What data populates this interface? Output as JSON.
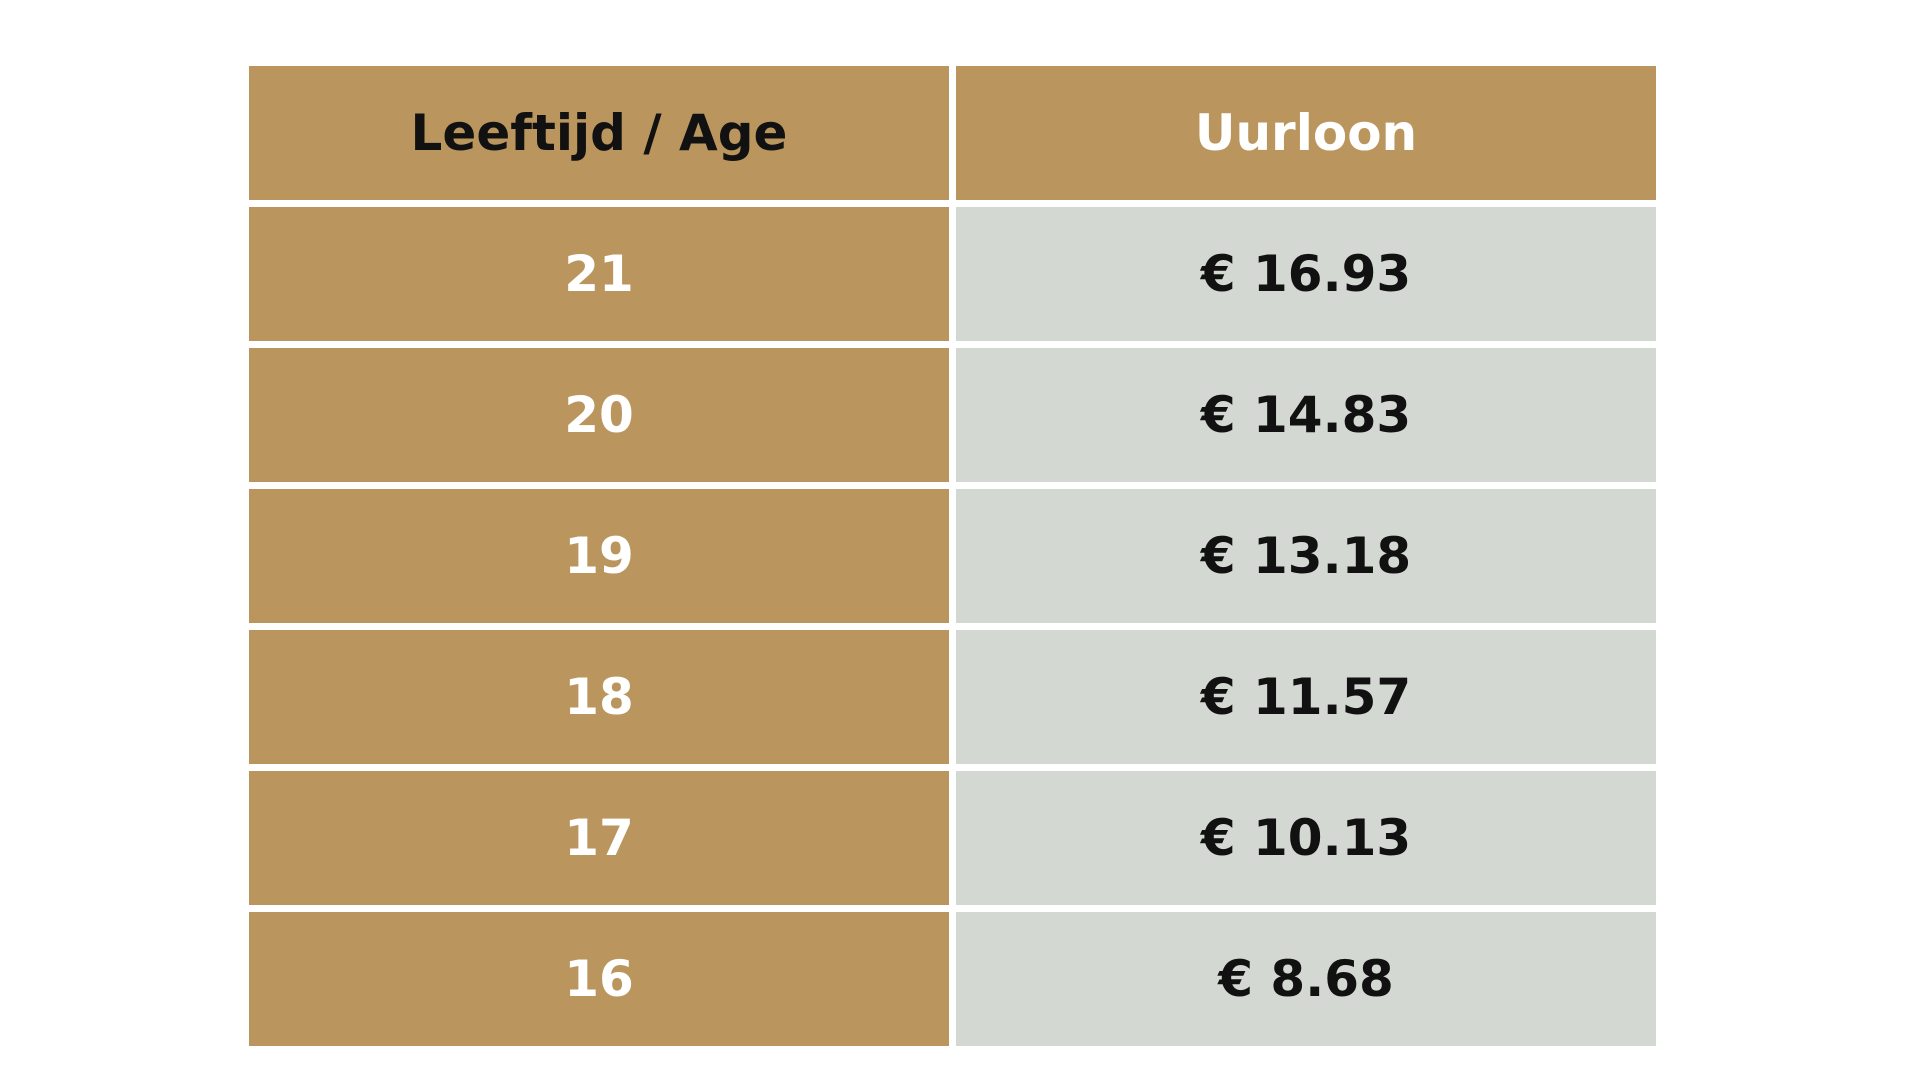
{
  "table": {
    "headers": {
      "age": "Leeftijd / Age",
      "wage": "Uurloon"
    },
    "rows": [
      {
        "age": "21",
        "wage": "€ 16.93"
      },
      {
        "age": "20",
        "wage": "€ 14.83"
      },
      {
        "age": "19",
        "wage": "€ 13.18"
      },
      {
        "age": "18",
        "wage": "€ 11.57"
      },
      {
        "age": "17",
        "wage": "€ 10.13"
      },
      {
        "age": "16",
        "wage": "€ 8.68"
      }
    ]
  },
  "colors": {
    "gold": "#ba965e",
    "grey": "#d4d8d2",
    "dark_text": "#111111",
    "light_text": "#ffffff"
  }
}
